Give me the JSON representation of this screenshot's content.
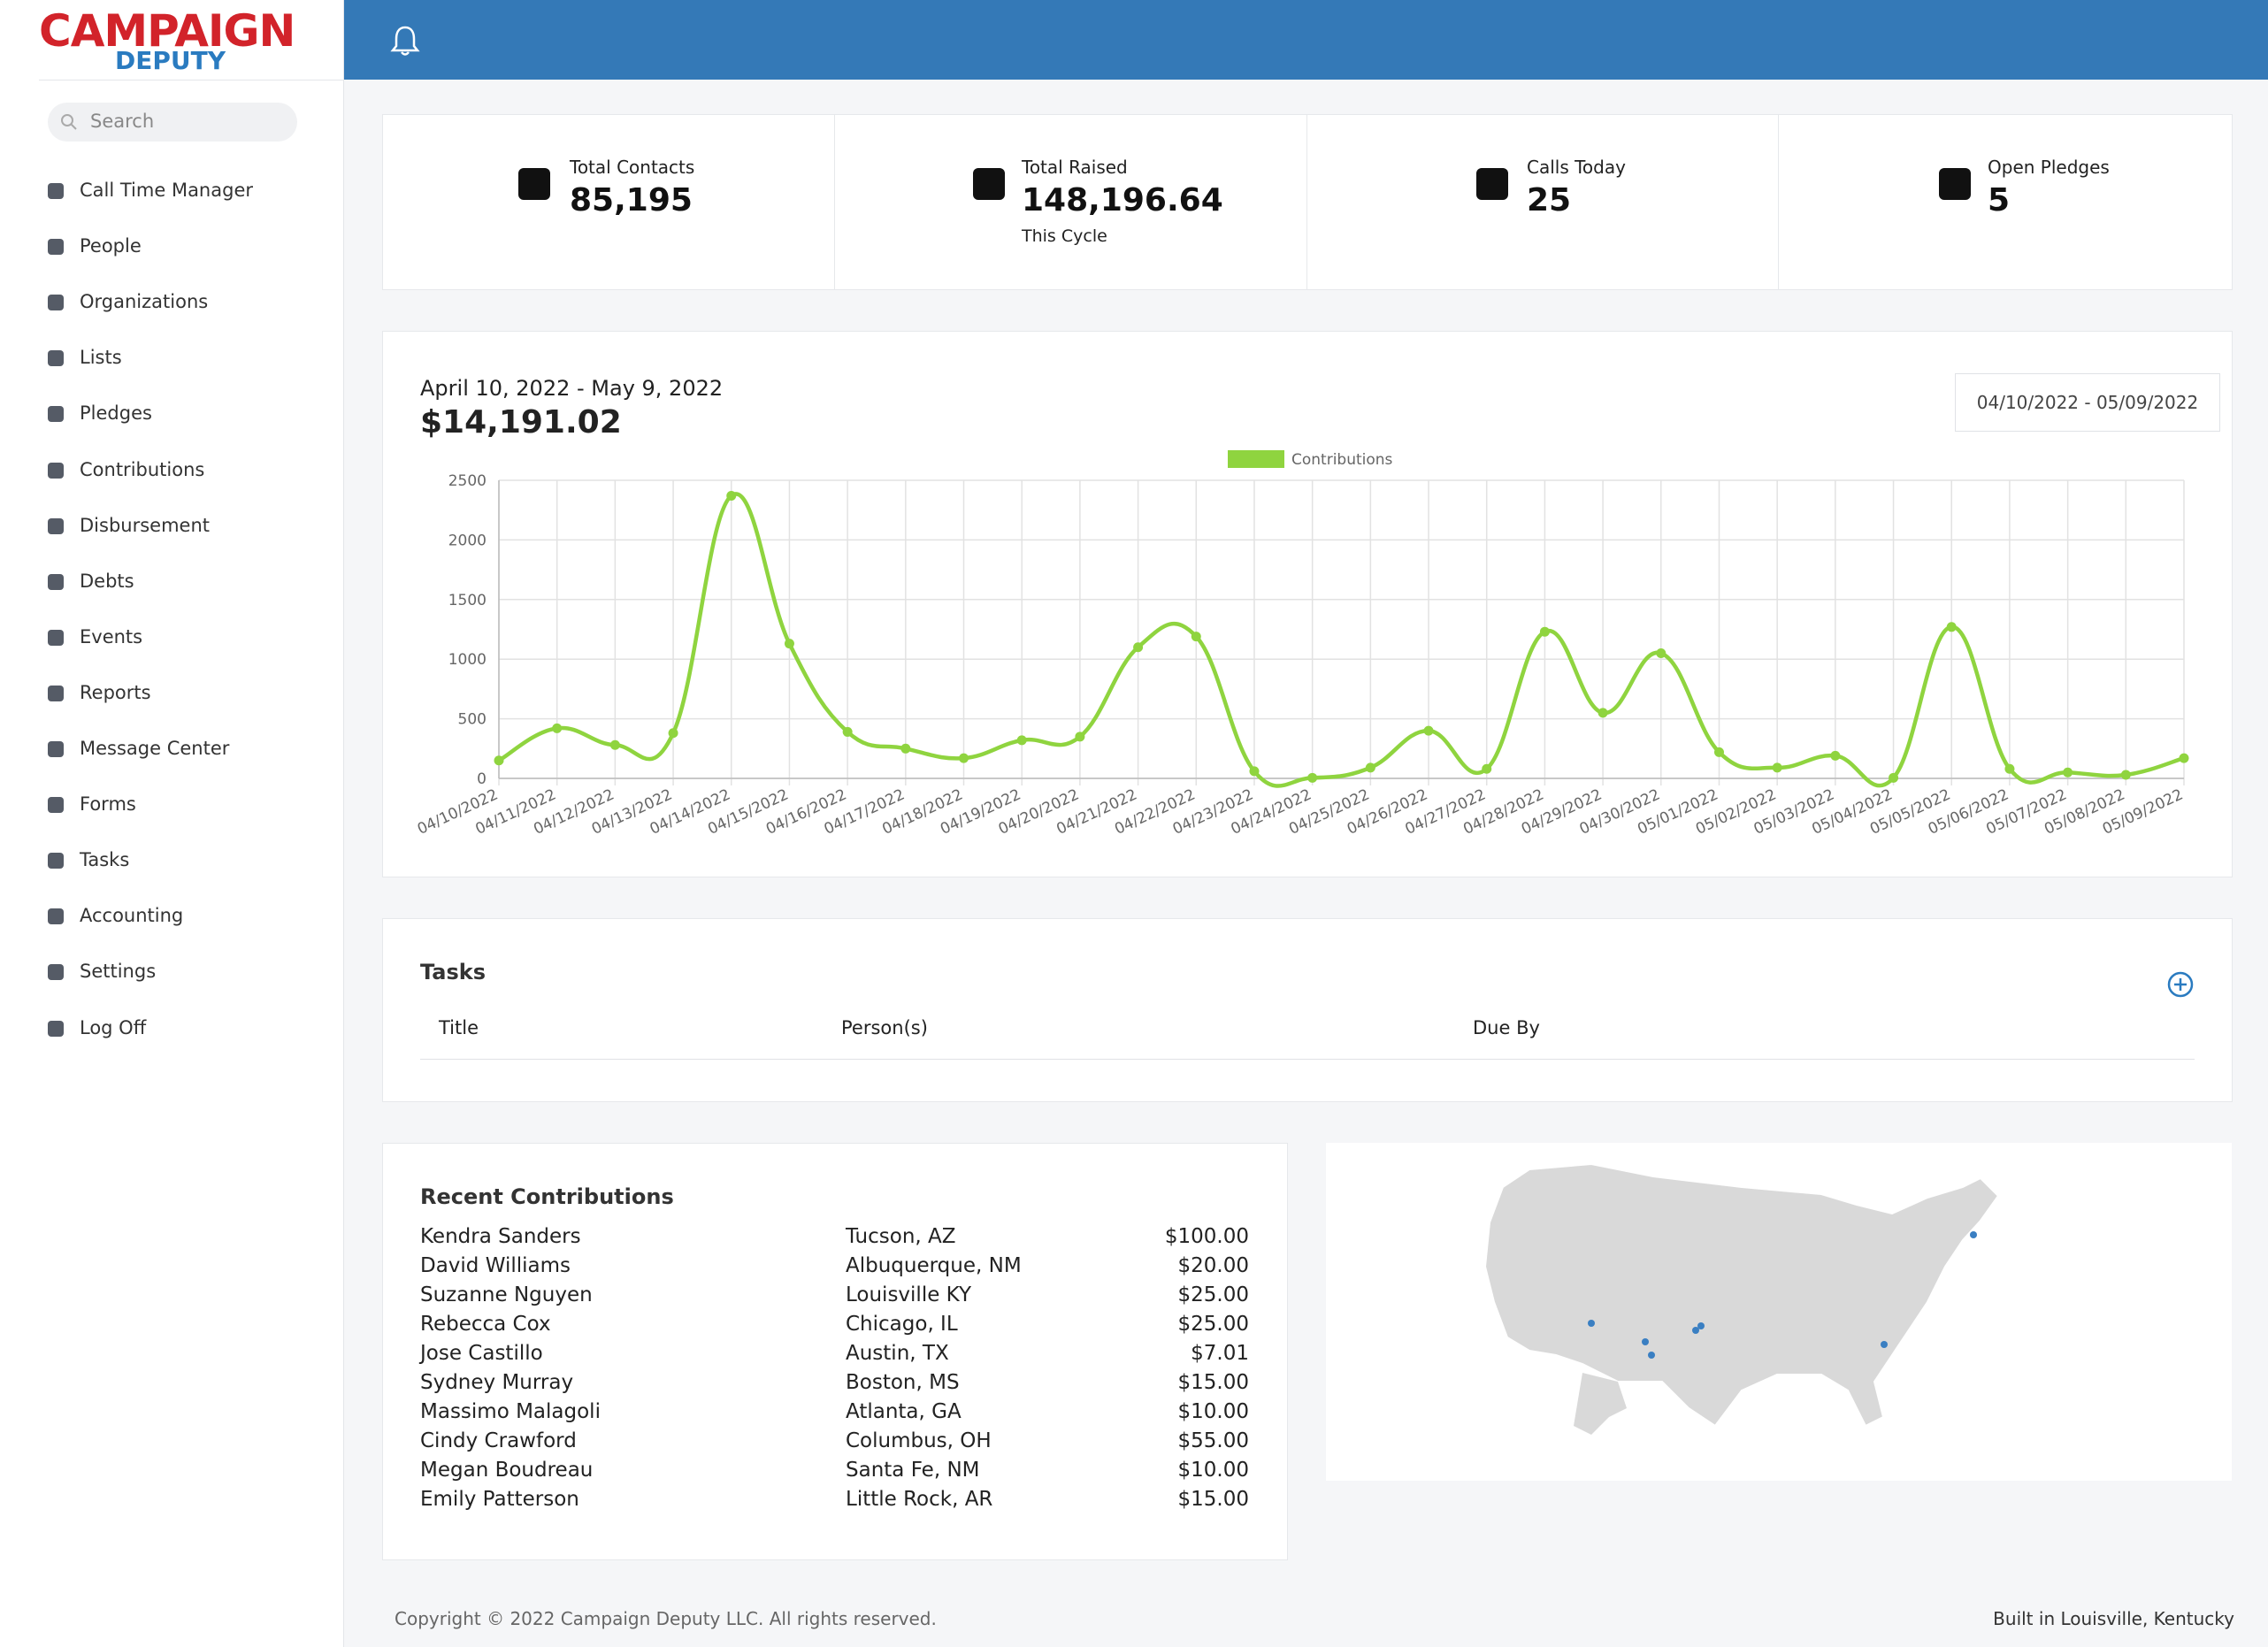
{
  "logo": {
    "line1": "CAMPAIGN",
    "line2": "DEPUTY"
  },
  "sidebar": {
    "search_placeholder": "Search",
    "items": [
      "Call Time Manager",
      "People",
      "Organizations",
      "Lists",
      "Pledges",
      "Contributions",
      "Disbursement",
      "Debts",
      "Events",
      "Reports",
      "Message Center",
      "Forms",
      "Tasks",
      "Accounting",
      "Settings",
      "Log Off"
    ]
  },
  "stats": [
    {
      "label": "Total Contacts",
      "value": "85,195"
    },
    {
      "label": "Total Raised",
      "value": "148,196.64",
      "sub": "This Cycle"
    },
    {
      "label": "Calls Today",
      "value": "25"
    },
    {
      "label": "Open Pledges",
      "value": "5"
    }
  ],
  "summary": {
    "range": "April 10, 2022 - May 9, 2022",
    "total": "$14,191.02",
    "picker": "04/10/2022 - 05/09/2022"
  },
  "chart_data": {
    "type": "line",
    "categories": [
      "04/10/2022",
      "04/11/2022",
      "04/12/2022",
      "04/13/2022",
      "04/14/2022",
      "04/15/2022",
      "04/16/2022",
      "04/17/2022",
      "04/18/2022",
      "04/19/2022",
      "04/20/2022",
      "04/21/2022",
      "04/22/2022",
      "04/23/2022",
      "04/24/2022",
      "04/25/2022",
      "04/26/2022",
      "04/27/2022",
      "04/28/2022",
      "04/29/2022",
      "04/30/2022",
      "05/01/2022",
      "05/02/2022",
      "05/03/2022",
      "05/04/2022",
      "05/05/2022",
      "05/06/2022",
      "05/07/2022",
      "05/08/2022",
      "05/09/2022"
    ],
    "series": [
      {
        "name": "Contributions",
        "color": "#8fd43f",
        "values": [
          150,
          420,
          280,
          380,
          2370,
          1130,
          390,
          250,
          170,
          320,
          350,
          1100,
          1190,
          60,
          5,
          90,
          400,
          80,
          1230,
          550,
          1050,
          220,
          90,
          190,
          5,
          1270,
          80,
          50,
          30,
          170
        ]
      }
    ],
    "ylim": [
      0,
      2500
    ],
    "yticks": [
      0,
      500,
      1000,
      1500,
      2000,
      2500
    ],
    "grid": true,
    "legend": "top"
  },
  "tasks": {
    "title": "Tasks",
    "columns": [
      "Title",
      "Person(s)",
      "Due By"
    ]
  },
  "recent": {
    "title": "Recent Contributions",
    "rows": [
      [
        "Kendra Sanders",
        "Tucson, AZ",
        "$100.00"
      ],
      [
        "David Williams",
        "Albuquerque, NM",
        "$20.00"
      ],
      [
        "Suzanne Nguyen",
        "Louisville KY",
        "$25.00"
      ],
      [
        "Rebecca Cox",
        "Chicago, IL",
        "$25.00"
      ],
      [
        "Jose Castillo",
        "Austin, TX",
        "$7.01"
      ],
      [
        "Sydney Murray",
        "Boston, MS",
        "$15.00"
      ],
      [
        "Massimo Malagoli",
        "Atlanta, GA",
        "$10.00"
      ],
      [
        "Cindy Crawford",
        "Columbus, OH",
        "$55.00"
      ],
      [
        "Megan Boudreau",
        "Santa Fe, NM",
        "$10.00"
      ],
      [
        "Emily Patterson",
        "Little Rock, AR",
        "$15.00"
      ]
    ]
  },
  "footer": {
    "copyright": "Copyright © 2022 Campaign Deputy LLC. All rights reserved.",
    "built": "Built in Louisville, Kentucky"
  }
}
